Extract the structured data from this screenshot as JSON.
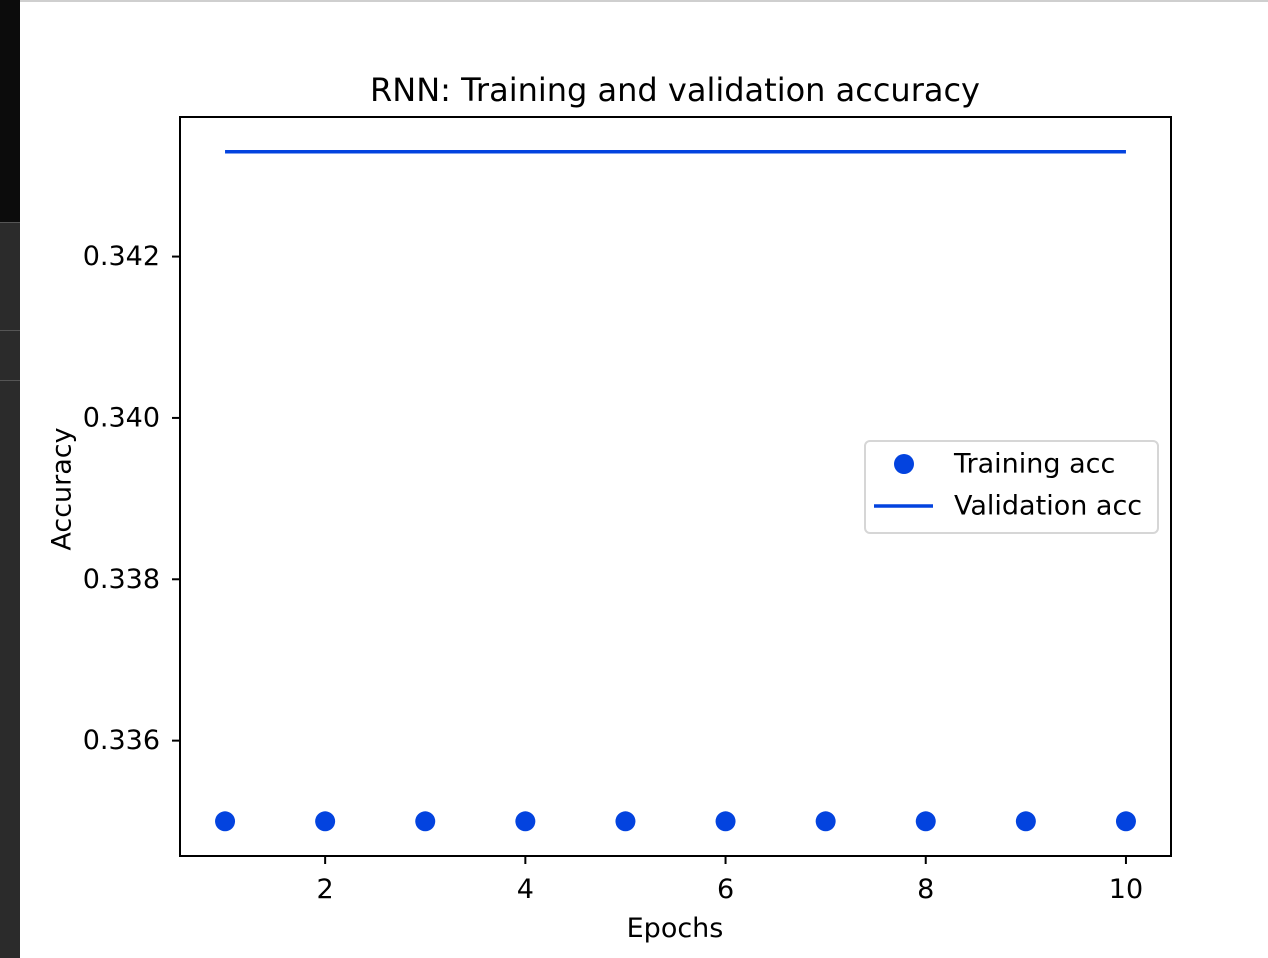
{
  "chart_data": {
    "type": "line",
    "title": "RNN: Training and validation accuracy",
    "xlabel": "Epochs",
    "ylabel": "Accuracy",
    "xlim": [
      0.55,
      10.45
    ],
    "ylim": [
      0.33457,
      0.34373
    ],
    "xticks": [
      2,
      4,
      6,
      8,
      10
    ],
    "xtick_labels": [
      "2",
      "4",
      "6",
      "8",
      "10"
    ],
    "yticks": [
      0.336,
      0.338,
      0.34,
      0.342
    ],
    "ytick_labels": [
      "0.336",
      "0.338",
      "0.340",
      "0.342"
    ],
    "x": [
      1,
      2,
      3,
      4,
      5,
      6,
      7,
      8,
      9,
      10
    ],
    "series": [
      {
        "name": "Training acc",
        "style": "points",
        "color": "#0343df",
        "values": [
          0.335,
          0.335,
          0.335,
          0.335,
          0.335,
          0.335,
          0.335,
          0.335,
          0.335,
          0.335
        ]
      },
      {
        "name": "Validation acc",
        "style": "line",
        "color": "#0343df",
        "values": [
          0.3433,
          0.3433,
          0.3433,
          0.3433,
          0.3433,
          0.3433,
          0.3433,
          0.3433,
          0.3433,
          0.3433
        ]
      }
    ],
    "legend_position": "center-right",
    "grid": false
  }
}
